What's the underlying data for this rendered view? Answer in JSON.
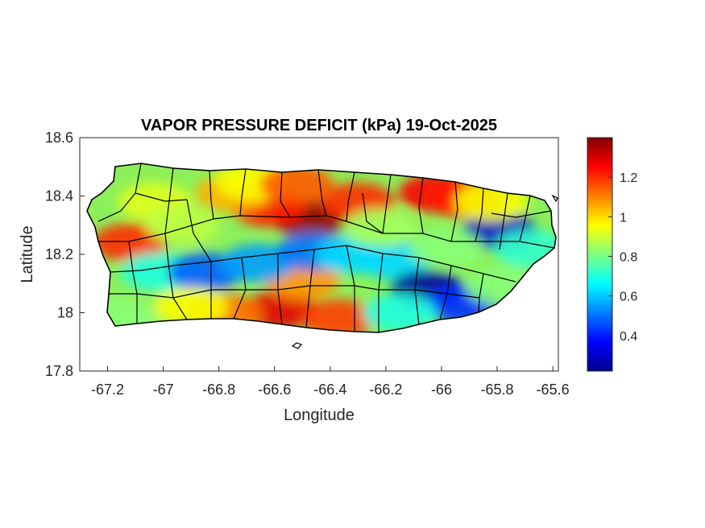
{
  "chart": {
    "title": "VAPOR PRESSURE DEFICIT (kPa) 19-Oct-2025",
    "xlabel": "Longitude",
    "ylabel": "Latitude",
    "xlim": [
      -67.3,
      -65.58
    ],
    "ylim": [
      17.8,
      18.6
    ],
    "xticks": [
      {
        "value": -67.2,
        "label": "-67.2"
      },
      {
        "value": -67.0,
        "label": "-67"
      },
      {
        "value": -66.8,
        "label": "-66.8"
      },
      {
        "value": -66.6,
        "label": "-66.6"
      },
      {
        "value": -66.4,
        "label": "-66.4"
      },
      {
        "value": -66.2,
        "label": "-66.2"
      },
      {
        "value": -66.0,
        "label": "-66"
      },
      {
        "value": -65.8,
        "label": "-65.8"
      },
      {
        "value": -65.6,
        "label": "-65.6"
      }
    ],
    "yticks": [
      {
        "value": 17.8,
        "label": "17.8"
      },
      {
        "value": 18.0,
        "label": "18"
      },
      {
        "value": 18.2,
        "label": "18.2"
      },
      {
        "value": 18.4,
        "label": "18.4"
      },
      {
        "value": 18.6,
        "label": "18.6"
      }
    ],
    "colorbar": {
      "colormap": "jet",
      "range": [
        0.22,
        1.4
      ],
      "ticks": [
        {
          "value": 0.4,
          "label": "0.4"
        },
        {
          "value": 0.6,
          "label": "0.6"
        },
        {
          "value": 0.8,
          "label": "0.8"
        },
        {
          "value": 1.0,
          "label": "1"
        },
        {
          "value": 1.2,
          "label": "1.2"
        }
      ]
    }
  },
  "chart_data": {
    "type": "heatmap",
    "variable": "VAPOR PRESSURE DEFICIT (kPa)",
    "date": "19-Oct-2025",
    "region": "Puerto Rico",
    "units": "kPa",
    "fields": [
      {
        "lon": -66.47,
        "lat": 18.32,
        "value": 1.38
      },
      {
        "lon": -66.62,
        "lat": 18.36,
        "value": 1.22
      },
      {
        "lon": -66.3,
        "lat": 18.38,
        "value": 1.2
      },
      {
        "lon": -66.02,
        "lat": 18.41,
        "value": 1.25
      },
      {
        "lon": -65.92,
        "lat": 18.39,
        "value": 1.22
      },
      {
        "lon": -66.75,
        "lat": 18.41,
        "value": 1.05
      },
      {
        "lon": -67.12,
        "lat": 18.24,
        "value": 1.2
      },
      {
        "lon": -66.58,
        "lat": 18.01,
        "value": 1.28
      },
      {
        "lon": -66.37,
        "lat": 17.98,
        "value": 1.18
      },
      {
        "lon": -66.78,
        "lat": 18.0,
        "value": 1.12
      },
      {
        "lon": -66.5,
        "lat": 18.11,
        "value": 1.08
      },
      {
        "lon": -67.03,
        "lat": 18.38,
        "value": 0.92
      },
      {
        "lon": -67.15,
        "lat": 17.98,
        "value": 0.82
      },
      {
        "lon": -67.02,
        "lat": 18.14,
        "value": 0.7
      },
      {
        "lon": -66.85,
        "lat": 18.14,
        "value": 0.48
      },
      {
        "lon": -66.66,
        "lat": 18.17,
        "value": 0.55
      },
      {
        "lon": -66.46,
        "lat": 18.21,
        "value": 0.5
      },
      {
        "lon": -66.32,
        "lat": 18.2,
        "value": 0.62
      },
      {
        "lon": -66.17,
        "lat": 18.18,
        "value": 0.62
      },
      {
        "lon": -66.05,
        "lat": 18.08,
        "value": 0.25
      },
      {
        "lon": -65.93,
        "lat": 18.03,
        "value": 0.42
      },
      {
        "lon": -65.79,
        "lat": 18.28,
        "value": 0.3
      },
      {
        "lon": -65.68,
        "lat": 18.22,
        "value": 0.72
      },
      {
        "lon": -65.78,
        "lat": 18.09,
        "value": 0.82
      },
      {
        "lon": -66.22,
        "lat": 18.29,
        "value": 0.85
      },
      {
        "lon": -66.15,
        "lat": 18.0,
        "value": 0.7
      },
      {
        "lon": -65.98,
        "lat": 18.22,
        "value": 0.82
      },
      {
        "lon": -66.68,
        "lat": 18.45,
        "value": 0.95
      },
      {
        "lon": -66.52,
        "lat": 18.44,
        "value": 1.15
      },
      {
        "lon": -66.93,
        "lat": 18.3,
        "value": 0.88
      },
      {
        "lon": -66.9,
        "lat": 18.02,
        "value": 0.95
      },
      {
        "lon": -65.82,
        "lat": 18.38,
        "value": 0.95
      }
    ],
    "xlim": [
      -67.3,
      -65.58
    ],
    "ylim": [
      17.8,
      18.6
    ],
    "colorbar_range": [
      0.22,
      1.4
    ]
  }
}
